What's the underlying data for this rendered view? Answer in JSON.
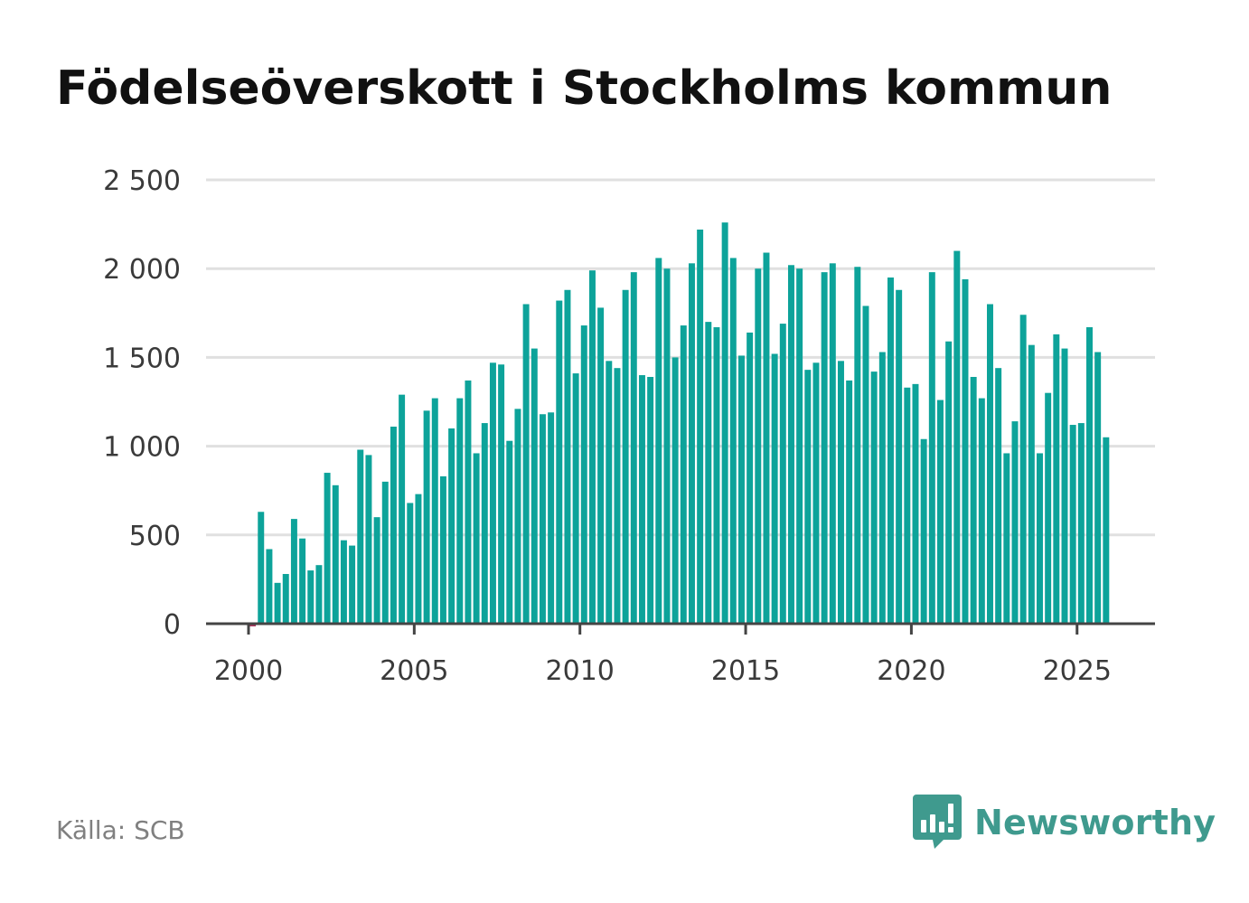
{
  "title": "Födelseöverskott i Stockholms kommun",
  "source": "Källa: SCB",
  "brand": {
    "name": "Newsworthy",
    "icon": "newsworthy-logo-icon"
  },
  "colors": {
    "bar": "#0da39a",
    "negative": "#b0305a",
    "grid": "#e0e0e0",
    "axis": "#444444",
    "brand": "#3f9a8e"
  },
  "chart_data": {
    "type": "bar",
    "title": "Födelseöverskott i Stockholms kommun",
    "xlabel": "",
    "ylabel": "",
    "ylim": [
      0,
      2500
    ],
    "xlim": [
      2000,
      2027.3
    ],
    "grid": true,
    "legend": "none",
    "yticks": [
      0,
      500,
      1000,
      1500,
      2000,
      2500
    ],
    "ytick_labels": [
      "0",
      "500",
      "1 000",
      "1 500",
      "2 000",
      "2 500"
    ],
    "xticks": [
      2000,
      2005,
      2010,
      2015,
      2020,
      2025
    ],
    "xtick_labels": [
      "2000",
      "2005",
      "2010",
      "2015",
      "2020",
      "2025"
    ],
    "start": 2000.0,
    "step": 0.25,
    "series": [
      {
        "name": "Födelseöverskott",
        "values": [
          -15,
          630,
          420,
          230,
          280,
          590,
          480,
          300,
          330,
          850,
          780,
          470,
          440,
          980,
          950,
          600,
          800,
          1110,
          1290,
          680,
          730,
          1200,
          1270,
          830,
          1100,
          1270,
          1370,
          960,
          1130,
          1470,
          1460,
          1030,
          1210,
          1800,
          1550,
          1180,
          1190,
          1820,
          1880,
          1410,
          1680,
          1990,
          1780,
          1480,
          1440,
          1880,
          1980,
          1400,
          1390,
          2060,
          2000,
          1500,
          1680,
          2030,
          2220,
          1700,
          1670,
          2260,
          2060,
          1510,
          1640,
          2000,
          2090,
          1520,
          1690,
          2020,
          2000,
          1430,
          1470,
          1980,
          2030,
          1480,
          1370,
          2010,
          1790,
          1420,
          1530,
          1950,
          1880,
          1330,
          1350,
          1040,
          1980,
          1260,
          1590,
          2100,
          1940,
          1390,
          1270,
          1800,
          1440,
          960,
          1140,
          1740,
          1570,
          960,
          1300,
          1630,
          1550,
          1120,
          1130,
          1670,
          1530,
          1050
        ]
      }
    ]
  }
}
